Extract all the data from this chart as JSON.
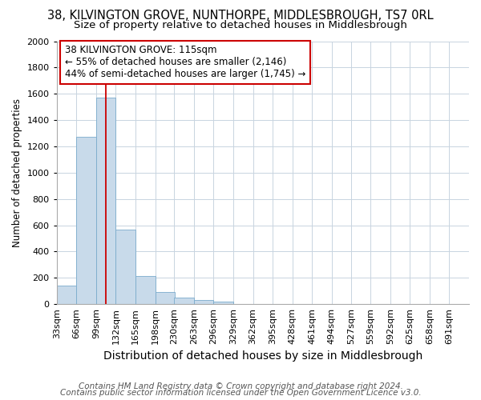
{
  "title": "38, KILVINGTON GROVE, NUNTHORPE, MIDDLESBROUGH, TS7 0RL",
  "subtitle": "Size of property relative to detached houses in Middlesbrough",
  "xlabel": "Distribution of detached houses by size in Middlesbrough",
  "ylabel": "Number of detached properties",
  "footnote1": "Contains HM Land Registry data © Crown copyright and database right 2024.",
  "footnote2": "Contains public sector information licensed under the Open Government Licence v3.0.",
  "bins": [
    33,
    66,
    99,
    132,
    165,
    198,
    230,
    263,
    296,
    329,
    362,
    395,
    428,
    461,
    494,
    527,
    559,
    592,
    625,
    658,
    691
  ],
  "bar_heights": [
    140,
    1270,
    1570,
    570,
    215,
    95,
    50,
    30,
    20,
    0,
    0,
    0,
    0,
    0,
    0,
    0,
    0,
    0,
    0,
    0
  ],
  "bar_color": "#c8daea",
  "bar_edge_color": "#7aabcc",
  "grid_color": "#c8d4e0",
  "property_line_x": 115,
  "property_line_color": "#cc0000",
  "ylim": [
    0,
    2000
  ],
  "annotation_title": "38 KILVINGTON GROVE: 115sqm",
  "annotation_line1": "← 55% of detached houses are smaller (2,146)",
  "annotation_line2": "44% of semi-detached houses are larger (1,745) →",
  "annotation_box_color": "#cc0000",
  "annotation_bg": "#ffffff",
  "title_fontsize": 10.5,
  "subtitle_fontsize": 9.5,
  "xlabel_fontsize": 10,
  "ylabel_fontsize": 8.5,
  "tick_fontsize": 8,
  "annotation_fontsize": 8.5,
  "footnote_fontsize": 7.5,
  "bg_color": "#ffffff"
}
